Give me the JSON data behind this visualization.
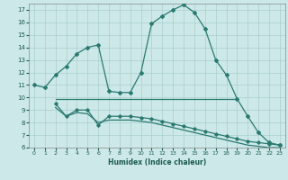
{
  "xlabel": "Humidex (Indice chaleur)",
  "bg_color": "#cce8e8",
  "line_color": "#2a7a70",
  "grid_color": "#aacfcf",
  "xlim": [
    -0.5,
    23.5
  ],
  "ylim": [
    6,
    17.5
  ],
  "xticks": [
    0,
    1,
    2,
    3,
    4,
    5,
    6,
    7,
    8,
    9,
    10,
    11,
    12,
    13,
    14,
    15,
    16,
    17,
    18,
    19,
    20,
    21,
    22,
    23
  ],
  "yticks": [
    6,
    7,
    8,
    9,
    10,
    11,
    12,
    13,
    14,
    15,
    16,
    17
  ],
  "curve1_x": [
    0,
    1,
    2,
    3,
    4,
    5,
    6,
    7,
    8,
    9,
    10,
    11,
    12,
    13,
    14,
    15,
    16,
    17,
    18,
    19,
    20,
    21,
    22,
    23
  ],
  "curve1_y": [
    11.0,
    10.8,
    11.8,
    12.5,
    13.5,
    14.0,
    14.2,
    10.5,
    10.4,
    10.4,
    12.0,
    15.9,
    16.5,
    17.0,
    17.4,
    16.8,
    15.5,
    13.0,
    11.8,
    9.9,
    8.5,
    7.2,
    6.4,
    6.2
  ],
  "curve2_x": [
    2,
    19
  ],
  "curve2_y": [
    9.9,
    9.9
  ],
  "curve3_x": [
    2,
    3,
    4,
    5,
    6,
    7,
    8,
    9,
    10,
    11,
    12,
    13,
    14,
    15,
    16,
    17,
    18,
    19,
    20,
    21,
    22,
    23
  ],
  "curve3_y": [
    9.5,
    8.5,
    9.0,
    9.0,
    7.8,
    8.5,
    8.5,
    8.5,
    8.4,
    8.3,
    8.1,
    7.9,
    7.7,
    7.5,
    7.3,
    7.1,
    6.9,
    6.7,
    6.5,
    6.4,
    6.3,
    6.2
  ],
  "curve4_x": [
    2,
    3,
    4,
    5,
    6,
    7,
    8,
    9,
    10,
    11,
    12,
    13,
    14,
    15,
    16,
    17,
    18,
    19,
    20,
    21,
    22,
    23
  ],
  "curve4_y": [
    9.2,
    8.5,
    8.8,
    8.7,
    8.0,
    8.2,
    8.2,
    8.2,
    8.1,
    8.0,
    7.8,
    7.6,
    7.4,
    7.2,
    7.0,
    6.8,
    6.6,
    6.4,
    6.2,
    6.1,
    6.0,
    6.0
  ]
}
